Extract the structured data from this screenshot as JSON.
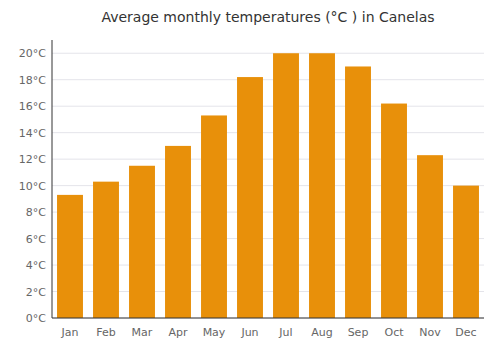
{
  "chart_data": {
    "type": "bar",
    "title": "Average monthly temperatures (°C ) in Canelas",
    "categories": [
      "Jan",
      "Feb",
      "Mar",
      "Apr",
      "May",
      "Jun",
      "Jul",
      "Aug",
      "Sep",
      "Oct",
      "Nov",
      "Dec"
    ],
    "values": [
      9.3,
      10.3,
      11.5,
      13.0,
      15.3,
      18.2,
      20.0,
      20.0,
      19.0,
      16.2,
      12.3,
      10.0
    ],
    "color": "#E8900A",
    "ylim": [
      0,
      21
    ],
    "yticks": [
      {
        "value": 0,
        "label": "0°C"
      },
      {
        "value": 2,
        "label": "2°C"
      },
      {
        "value": 4,
        "label": "4°C"
      },
      {
        "value": 6,
        "label": "6°C"
      },
      {
        "value": 8,
        "label": "8°C"
      },
      {
        "value": 10,
        "label": "10°C"
      },
      {
        "value": 12,
        "label": "12°C"
      },
      {
        "value": 14,
        "label": "14°C"
      },
      {
        "value": 16,
        "label": "16°C"
      },
      {
        "value": 18,
        "label": "18°C"
      },
      {
        "value": 20,
        "label": "20°C"
      }
    ],
    "grid": true
  }
}
